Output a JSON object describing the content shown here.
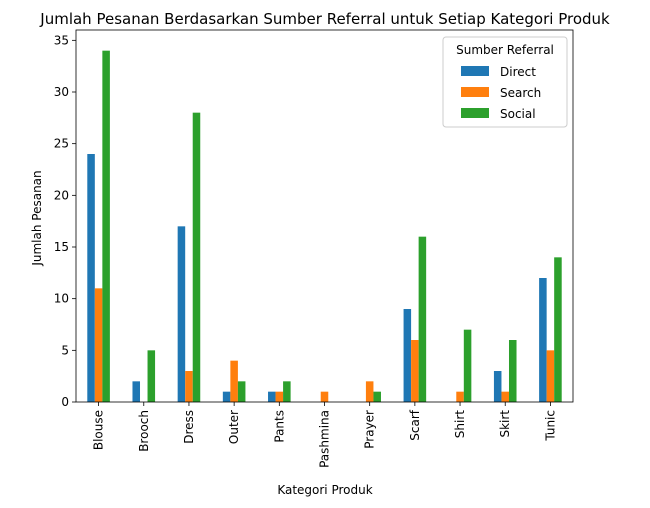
{
  "chart_data": {
    "type": "bar",
    "title": "Jumlah Pesanan Berdasarkan Sumber Referral untuk Setiap Kategori Produk",
    "xlabel": "Kategori Produk",
    "ylabel": "Jumlah Pesanan",
    "ylim": [
      0,
      36
    ],
    "yticks": [
      0,
      5,
      10,
      15,
      20,
      25,
      30,
      35
    ],
    "grid": false,
    "legend_title": "Sumber Referral",
    "legend_position": "top-right",
    "categories": [
      "Blouse",
      "Brooch",
      "Dress",
      "Outer",
      "Pants",
      "Pashmina",
      "Prayer",
      "Scarf",
      "Shirt",
      "Skirt",
      "Tunic"
    ],
    "series": [
      {
        "name": "Direct",
        "color": "#1f77b4",
        "values": [
          24,
          2,
          17,
          1,
          1,
          0,
          0,
          9,
          0,
          3,
          12
        ]
      },
      {
        "name": "Search",
        "color": "#ff7f0e",
        "values": [
          11,
          0,
          3,
          4,
          1,
          1,
          2,
          6,
          1,
          1,
          5
        ]
      },
      {
        "name": "Social",
        "color": "#2ca02c",
        "values": [
          34,
          5,
          28,
          2,
          2,
          0,
          1,
          16,
          7,
          6,
          14
        ]
      }
    ]
  }
}
